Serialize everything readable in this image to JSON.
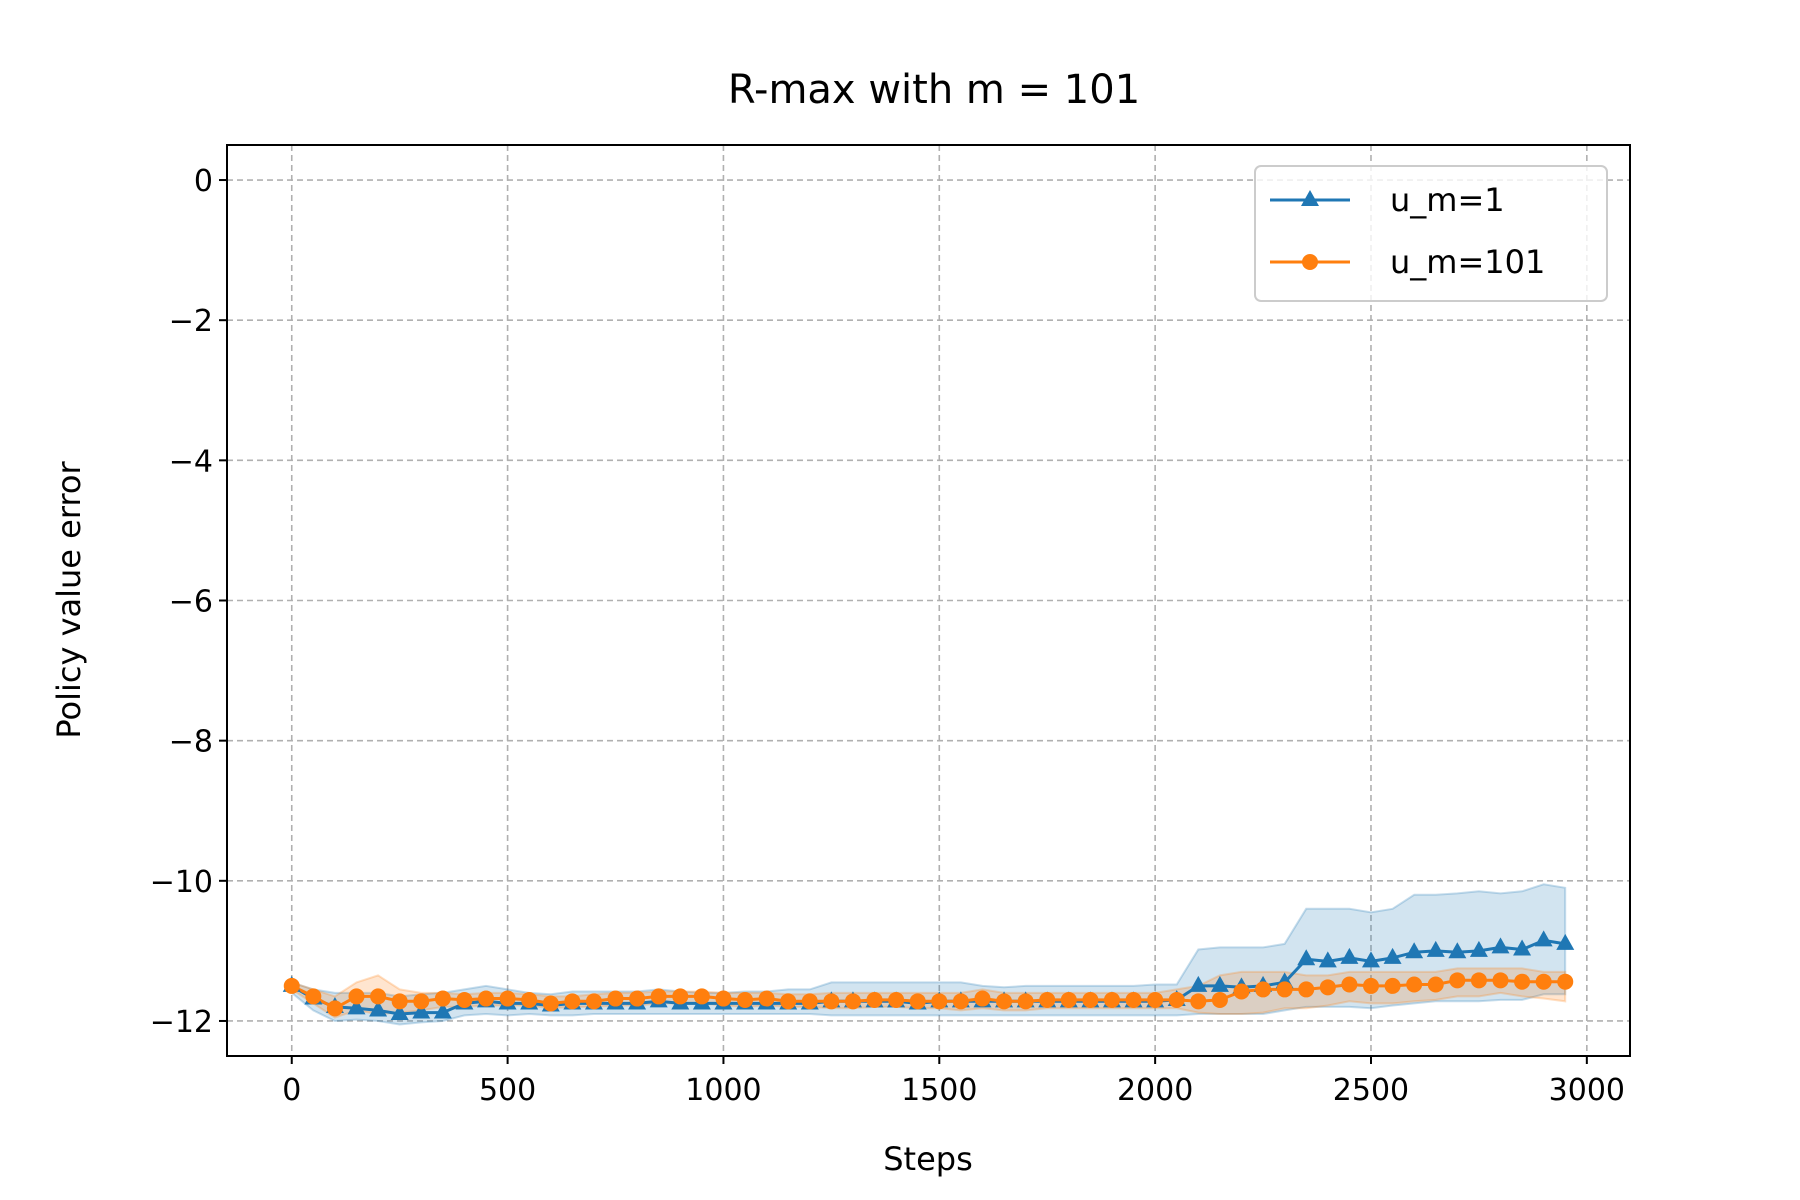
{
  "chart_data": {
    "type": "line",
    "title": "R-max with m = 101",
    "xlabel": "Steps",
    "ylabel": "Policy value error",
    "xlim": [
      -150,
      3100
    ],
    "ylim": [
      -12.5,
      0.5
    ],
    "xticks": [
      0,
      500,
      1000,
      1500,
      2000,
      2500,
      3000
    ],
    "xtick_labels": [
      "0",
      "500",
      "1000",
      "1500",
      "2000",
      "2500",
      "3000"
    ],
    "yticks": [
      0,
      -2,
      -4,
      -6,
      -8,
      -10,
      -12
    ],
    "ytick_labels": [
      "0",
      "−2",
      "−4",
      "−6",
      "−8",
      "−10",
      "−12"
    ],
    "grid": true,
    "legend_position": "top-right",
    "x": [
      0,
      50,
      100,
      150,
      200,
      250,
      300,
      350,
      400,
      450,
      500,
      550,
      600,
      650,
      700,
      750,
      800,
      850,
      900,
      950,
      1000,
      1050,
      1100,
      1150,
      1200,
      1250,
      1300,
      1350,
      1400,
      1450,
      1500,
      1550,
      1600,
      1650,
      1700,
      1750,
      1800,
      1850,
      1900,
      1950,
      2000,
      2050,
      2100,
      2150,
      2200,
      2250,
      2300,
      2350,
      2400,
      2450,
      2500,
      2550,
      2600,
      2650,
      2700,
      2750,
      2800,
      2850,
      2900,
      2950
    ],
    "series": [
      {
        "name": "u_m=1",
        "color": "#1f77b4",
        "marker": "triangle",
        "values": [
          -11.5,
          -11.68,
          -11.8,
          -11.82,
          -11.85,
          -11.9,
          -11.88,
          -11.88,
          -11.75,
          -11.72,
          -11.75,
          -11.75,
          -11.78,
          -11.75,
          -11.75,
          -11.75,
          -11.75,
          -11.72,
          -11.75,
          -11.75,
          -11.75,
          -11.75,
          -11.75,
          -11.75,
          -11.75,
          -11.72,
          -11.72,
          -11.72,
          -11.72,
          -11.75,
          -11.72,
          -11.72,
          -11.72,
          -11.72,
          -11.72,
          -11.72,
          -11.72,
          -11.72,
          -11.72,
          -11.72,
          -11.72,
          -11.7,
          -11.5,
          -11.5,
          -11.52,
          -11.5,
          -11.45,
          -11.12,
          -11.15,
          -11.1,
          -11.15,
          -11.1,
          -11.02,
          -11.0,
          -11.02,
          -11.0,
          -10.95,
          -10.98,
          -10.85,
          -10.9
        ],
        "upper": [
          -11.45,
          -11.55,
          -11.6,
          -11.6,
          -11.6,
          -11.65,
          -11.62,
          -11.6,
          -11.55,
          -11.5,
          -11.55,
          -11.6,
          -11.62,
          -11.58,
          -11.58,
          -11.58,
          -11.58,
          -11.55,
          -11.58,
          -11.6,
          -11.6,
          -11.58,
          -11.58,
          -11.55,
          -11.55,
          -11.45,
          -11.45,
          -11.45,
          -11.45,
          -11.45,
          -11.45,
          -11.45,
          -11.5,
          -11.52,
          -11.5,
          -11.5,
          -11.5,
          -11.5,
          -11.5,
          -11.5,
          -11.48,
          -11.48,
          -10.98,
          -10.95,
          -10.95,
          -10.95,
          -10.9,
          -10.4,
          -10.4,
          -10.4,
          -10.45,
          -10.4,
          -10.2,
          -10.2,
          -10.18,
          -10.15,
          -10.18,
          -10.15,
          -10.05,
          -10.1
        ],
        "lower": [
          -11.6,
          -11.85,
          -12.0,
          -11.98,
          -12.0,
          -12.05,
          -12.02,
          -12.0,
          -11.92,
          -11.9,
          -11.92,
          -11.9,
          -11.92,
          -11.92,
          -11.9,
          -11.9,
          -11.9,
          -11.9,
          -11.9,
          -11.9,
          -11.9,
          -11.9,
          -11.9,
          -11.9,
          -11.9,
          -11.92,
          -11.92,
          -11.92,
          -11.92,
          -11.92,
          -11.92,
          -11.92,
          -11.92,
          -11.92,
          -11.92,
          -11.92,
          -11.92,
          -11.92,
          -11.92,
          -11.92,
          -11.92,
          -11.92,
          -11.9,
          -11.9,
          -11.9,
          -11.9,
          -11.85,
          -11.8,
          -11.8,
          -11.8,
          -11.82,
          -11.78,
          -11.75,
          -11.72,
          -11.72,
          -11.72,
          -11.7,
          -11.7,
          -11.62,
          -11.62
        ]
      },
      {
        "name": "u_m=101",
        "color": "#ff7f0e",
        "marker": "circle",
        "values": [
          -11.5,
          -11.65,
          -11.82,
          -11.65,
          -11.65,
          -11.72,
          -11.72,
          -11.68,
          -11.7,
          -11.68,
          -11.68,
          -11.7,
          -11.75,
          -11.72,
          -11.72,
          -11.68,
          -11.68,
          -11.65,
          -11.65,
          -11.65,
          -11.68,
          -11.7,
          -11.68,
          -11.72,
          -11.72,
          -11.72,
          -11.72,
          -11.7,
          -11.7,
          -11.72,
          -11.72,
          -11.72,
          -11.68,
          -11.72,
          -11.72,
          -11.7,
          -11.7,
          -11.7,
          -11.7,
          -11.7,
          -11.7,
          -11.7,
          -11.72,
          -11.7,
          -11.58,
          -11.55,
          -11.55,
          -11.55,
          -11.52,
          -11.48,
          -11.5,
          -11.5,
          -11.48,
          -11.48,
          -11.42,
          -11.42,
          -11.42,
          -11.44,
          -11.44,
          -11.44
        ],
        "upper": [
          -11.45,
          -11.55,
          -11.65,
          -11.45,
          -11.35,
          -11.55,
          -11.6,
          -11.6,
          -11.62,
          -11.6,
          -11.6,
          -11.62,
          -11.65,
          -11.65,
          -11.62,
          -11.6,
          -11.6,
          -11.58,
          -11.58,
          -11.58,
          -11.6,
          -11.6,
          -11.6,
          -11.62,
          -11.62,
          -11.6,
          -11.6,
          -11.6,
          -11.6,
          -11.6,
          -11.6,
          -11.6,
          -11.55,
          -11.6,
          -11.6,
          -11.6,
          -11.6,
          -11.6,
          -11.6,
          -11.6,
          -11.6,
          -11.55,
          -11.5,
          -11.35,
          -11.3,
          -11.3,
          -11.3,
          -11.35,
          -11.35,
          -11.3,
          -11.3,
          -11.3,
          -11.3,
          -11.3,
          -11.25,
          -11.25,
          -11.25,
          -11.25,
          -11.3,
          -11.3
        ],
        "lower": [
          -11.55,
          -11.75,
          -11.95,
          -11.85,
          -11.9,
          -11.88,
          -11.85,
          -11.8,
          -11.8,
          -11.78,
          -11.78,
          -11.78,
          -11.82,
          -11.8,
          -11.8,
          -11.78,
          -11.78,
          -11.75,
          -11.75,
          -11.75,
          -11.78,
          -11.8,
          -11.78,
          -11.8,
          -11.8,
          -11.82,
          -11.82,
          -11.8,
          -11.8,
          -11.82,
          -11.82,
          -11.85,
          -11.82,
          -11.85,
          -11.85,
          -11.82,
          -11.82,
          -11.82,
          -11.82,
          -11.82,
          -11.82,
          -11.82,
          -11.88,
          -11.9,
          -11.9,
          -11.88,
          -11.82,
          -11.82,
          -11.78,
          -11.72,
          -11.75,
          -11.75,
          -11.72,
          -11.7,
          -11.65,
          -11.65,
          -11.6,
          -11.65,
          -11.68,
          -11.72
        ]
      }
    ]
  }
}
